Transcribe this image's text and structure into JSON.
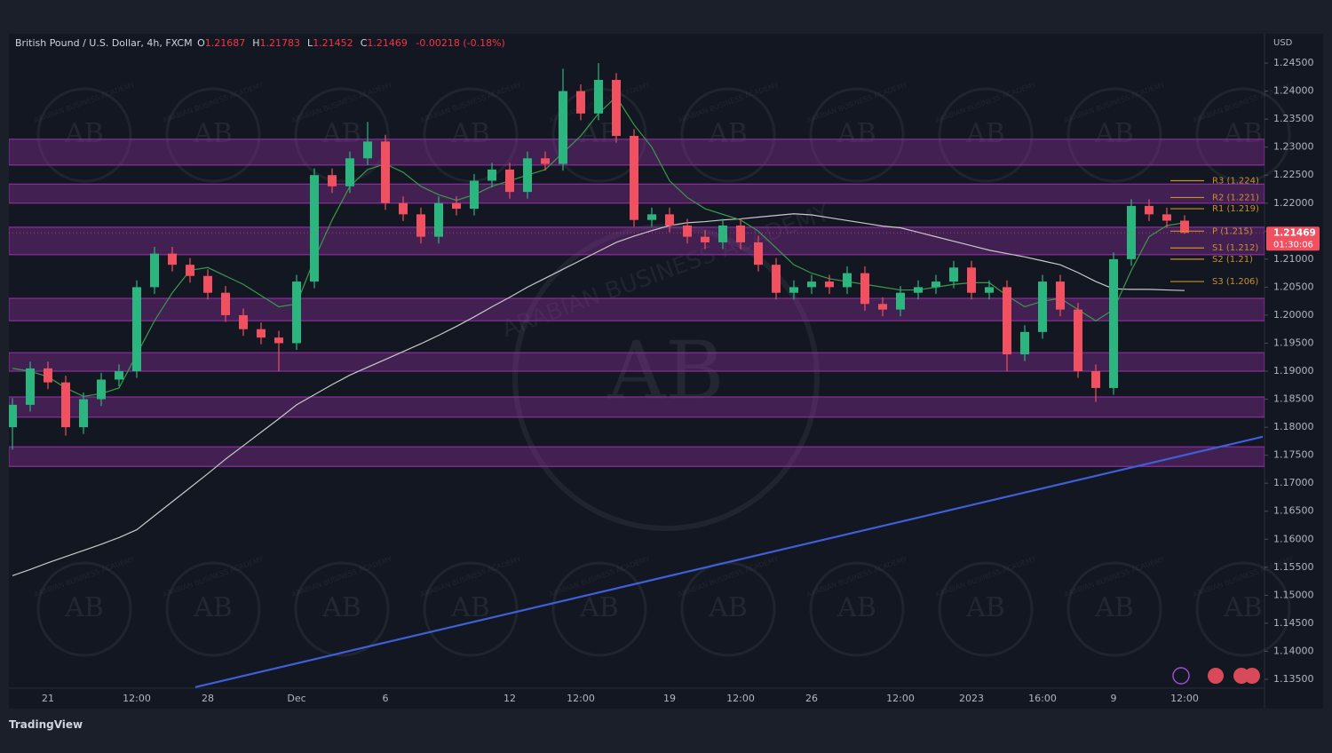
{
  "chart_data": {
    "type": "candlestick",
    "header": {
      "title": "British Pound / U.S. Dollar, 4h, FXCM",
      "ohlc": [
        {
          "key": "O",
          "value": "1.21687"
        },
        {
          "key": "H",
          "value": "1.21783"
        },
        {
          "key": "L",
          "value": "1.21452"
        },
        {
          "key": "C",
          "value": "1.21469"
        }
      ],
      "change": "-0.00218 (-0.18%)"
    },
    "axis_label": "USD",
    "categories": [
      null,
      null,
      "21",
      null,
      null,
      null,
      null,
      "12:00",
      null,
      null,
      null,
      "28",
      null,
      null,
      null,
      null,
      "Dec",
      null,
      null,
      null,
      null,
      "6",
      null,
      null,
      null,
      null,
      null,
      null,
      "12",
      null,
      null,
      null,
      "12:00",
      null,
      null,
      null,
      null,
      "19",
      null,
      null,
      null,
      "12:00",
      null,
      null,
      null,
      "26",
      null,
      null,
      null,
      null,
      "12:00",
      null,
      null,
      null,
      "2023",
      null,
      null,
      null,
      "16:00",
      null,
      null,
      null,
      "9",
      null,
      null,
      null,
      "12:00"
    ],
    "open": [
      1.18,
      1.184,
      1.1905,
      1.188,
      1.18,
      1.185,
      1.1885,
      1.19,
      1.205,
      1.211,
      1.209,
      1.207,
      1.204,
      1.2,
      1.1975,
      1.196,
      1.195,
      1.206,
      1.225,
      1.223,
      1.228,
      1.231,
      1.22,
      1.218,
      1.214,
      1.22,
      1.219,
      1.224,
      1.226,
      1.222,
      1.228,
      1.227,
      1.24,
      1.236,
      1.242,
      1.232,
      1.217,
      1.218,
      1.216,
      1.214,
      1.213,
      1.216,
      1.213,
      1.209,
      1.204,
      1.205,
      1.206,
      1.205,
      1.2075,
      1.202,
      1.201,
      1.204,
      1.205,
      1.206,
      1.2085,
      1.204,
      1.205,
      1.193,
      1.197,
      1.206,
      1.201,
      1.19,
      1.187,
      1.21,
      1.2195,
      1.218,
      1.21687
    ],
    "high": [
      1.1852,
      1.1917,
      1.1917,
      1.1892,
      1.1862,
      1.1897,
      1.1912,
      1.2062,
      1.2122,
      1.2122,
      1.2102,
      1.2082,
      1.2052,
      1.2012,
      1.1987,
      1.1972,
      1.2072,
      1.2262,
      1.2262,
      1.2292,
      1.2345,
      1.2322,
      1.2212,
      1.2192,
      1.2212,
      1.2212,
      1.2252,
      1.2272,
      1.2272,
      1.2292,
      1.2292,
      1.244,
      1.2412,
      1.245,
      1.2432,
      1.2332,
      1.2192,
      1.2192,
      1.2172,
      1.2152,
      1.2172,
      1.2172,
      1.2142,
      1.2102,
      1.2062,
      1.2072,
      1.2072,
      1.2087,
      1.2087,
      1.2032,
      1.2052,
      1.2062,
      1.2072,
      1.2097,
      1.2097,
      1.2062,
      1.2062,
      1.1982,
      1.2072,
      1.2072,
      1.2022,
      1.1912,
      1.2112,
      1.2207,
      1.2207,
      1.2192,
      1.21783
    ],
    "low": [
      1.176,
      1.1828,
      1.1868,
      1.1785,
      1.1788,
      1.1838,
      1.1873,
      1.1888,
      1.2038,
      1.2078,
      1.2058,
      1.2028,
      1.1988,
      1.1963,
      1.1948,
      1.19,
      1.1938,
      1.2048,
      1.2218,
      1.2218,
      1.2268,
      1.2188,
      1.2168,
      1.2128,
      1.2128,
      1.2178,
      1.2178,
      1.2228,
      1.2208,
      1.2208,
      1.2258,
      1.2258,
      1.2348,
      1.2348,
      1.2308,
      1.2158,
      1.2158,
      1.2148,
      1.2128,
      1.2118,
      1.2118,
      1.2118,
      1.2078,
      1.2028,
      1.2028,
      1.2038,
      1.2038,
      1.2038,
      1.2008,
      1.1998,
      1.1998,
      1.2028,
      1.2038,
      1.2048,
      1.2028,
      1.2028,
      1.19,
      1.1918,
      1.1958,
      1.1998,
      1.1888,
      1.1845,
      1.1858,
      1.2088,
      1.2168,
      1.2156,
      1.21452
    ],
    "close": [
      1.184,
      1.1905,
      1.188,
      1.18,
      1.185,
      1.1885,
      1.19,
      1.205,
      1.211,
      1.209,
      1.207,
      1.204,
      1.2,
      1.1975,
      1.196,
      1.195,
      1.206,
      1.225,
      1.223,
      1.228,
      1.231,
      1.22,
      1.218,
      1.214,
      1.22,
      1.219,
      1.224,
      1.226,
      1.222,
      1.228,
      1.227,
      1.24,
      1.236,
      1.242,
      1.232,
      1.217,
      1.218,
      1.216,
      1.214,
      1.213,
      1.216,
      1.213,
      1.209,
      1.204,
      1.205,
      1.206,
      1.205,
      1.2075,
      1.202,
      1.201,
      1.204,
      1.205,
      1.206,
      1.2085,
      1.204,
      1.205,
      1.193,
      1.197,
      1.206,
      1.201,
      1.19,
      1.187,
      1.21,
      1.2195,
      1.218,
      1.21687,
      1.21469
    ],
    "up_color": "#2bb57f",
    "down_color": "#f0505f",
    "moving_averages": [
      {
        "color": "#c9c9c9",
        "values": [
          1.1535,
          1.1546,
          1.1558,
          1.1569,
          1.158,
          1.1591,
          1.1603,
          1.1617,
          1.1642,
          1.1667,
          1.1692,
          1.1717,
          1.1743,
          1.1767,
          1.1791,
          1.1815,
          1.184,
          1.1858,
          1.1876,
          1.1893,
          1.1907,
          1.1921,
          1.1935,
          1.1949,
          1.1964,
          1.198,
          1.1997,
          1.2015,
          1.2032,
          1.205,
          1.2066,
          1.2082,
          1.2098,
          1.2114,
          1.213,
          1.2141,
          1.2151,
          1.216,
          1.2165,
          1.2167,
          1.217,
          1.2172,
          1.2175,
          1.2178,
          1.2181,
          1.2179,
          1.2174,
          1.2169,
          1.2164,
          1.2159,
          1.2156,
          1.2148,
          1.214,
          1.2132,
          1.2124,
          1.2116,
          1.211,
          1.2104,
          1.2097,
          1.209,
          1.2076,
          1.206,
          1.2047,
          1.2046,
          1.2046,
          1.2045,
          1.2044
        ]
      },
      {
        "color": "#3a9a4a",
        "values": [
          1.1905,
          1.19,
          1.189,
          1.187,
          1.1855,
          1.186,
          1.187,
          1.193,
          1.199,
          1.204,
          1.208,
          1.2085,
          1.207,
          1.2055,
          1.2035,
          1.2015,
          1.202,
          1.21,
          1.217,
          1.223,
          1.226,
          1.227,
          1.2255,
          1.223,
          1.2215,
          1.2205,
          1.2215,
          1.223,
          1.224,
          1.225,
          1.226,
          1.229,
          1.232,
          1.236,
          1.239,
          1.234,
          1.23,
          1.224,
          1.221,
          1.219,
          1.218,
          1.217,
          1.215,
          1.212,
          1.209,
          1.2075,
          1.2065,
          1.206,
          1.2055,
          1.205,
          1.2045,
          1.2045,
          1.205,
          1.2055,
          1.2058,
          1.2058,
          1.2035,
          1.2015,
          1.2025,
          1.203,
          1.201,
          1.199,
          1.201,
          1.208,
          1.214,
          1.216,
          1.2165
        ]
      }
    ],
    "zones": [
      [
        1.2268,
        1.2314
      ],
      [
        1.22,
        1.2234
      ],
      [
        1.2108,
        1.2157
      ],
      [
        1.199,
        1.203
      ],
      [
        1.19,
        1.1933
      ],
      [
        1.1818,
        1.1854
      ],
      [
        1.173,
        1.1765
      ]
    ],
    "zone_color": "#8a2f9c",
    "pivots": [
      {
        "label": "R3 (1.224)",
        "value": 1.224
      },
      {
        "label": "R2 (1.221)",
        "value": 1.221
      },
      {
        "label": "R1 (1.219)",
        "value": 1.219
      },
      {
        "label": "P (1.215)",
        "value": 1.215
      },
      {
        "label": "S1 (1.212)",
        "value": 1.212
      },
      {
        "label": "S2 (1.21)",
        "value": 1.21
      },
      {
        "label": "S3 (1.206)",
        "value": 1.206
      }
    ],
    "pivot_color": "#c8902a",
    "trendline": {
      "color": "#3f5fd8",
      "x": [
        10.3,
        70.4
      ],
      "y": [
        1.1336,
        1.1783
      ]
    },
    "price_tag": {
      "value": 1.21469,
      "countdown": "01:30:06"
    },
    "ylim": [
      1.134,
      1.25
    ],
    "yticks": [
      {
        "value": 1.245,
        "label": "1.24500"
      },
      {
        "value": 1.24,
        "label": "1.24000"
      },
      {
        "value": 1.235,
        "label": "1.23500"
      },
      {
        "value": 1.23,
        "label": "1.23000"
      },
      {
        "value": 1.225,
        "label": "1.22500"
      },
      {
        "value": 1.22,
        "label": "1.22000"
      },
      {
        "value": 1.215,
        "label": "1.21500"
      },
      {
        "value": 1.21,
        "label": "1.21000"
      },
      {
        "value": 1.205,
        "label": "1.20500"
      },
      {
        "value": 1.2,
        "label": "1.20000"
      },
      {
        "value": 1.195,
        "label": "1.19500"
      },
      {
        "value": 1.19,
        "label": "1.19000"
      },
      {
        "value": 1.185,
        "label": "1.18500"
      },
      {
        "value": 1.18,
        "label": "1.18000"
      },
      {
        "value": 1.175,
        "label": "1.17500"
      },
      {
        "value": 1.17,
        "label": "1.17000"
      },
      {
        "value": 1.165,
        "label": "1.16500"
      },
      {
        "value": 1.16,
        "label": "1.16000"
      },
      {
        "value": 1.155,
        "label": "1.15500"
      },
      {
        "value": 1.15,
        "label": "1.15000"
      },
      {
        "value": 1.145,
        "label": "1.14500"
      },
      {
        "value": 1.14,
        "label": "1.14000"
      },
      {
        "value": 1.135,
        "label": "1.13500"
      }
    ],
    "watermark": {
      "logo": "AB",
      "name": "ARABIAN BUSINESS ACADEMY"
    },
    "brand": "TradingView"
  }
}
